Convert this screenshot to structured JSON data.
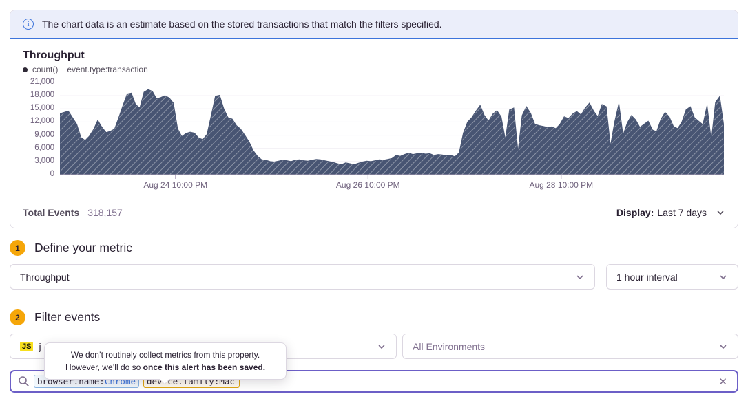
{
  "banner": {
    "text": "The chart data is an estimate based on the stored transactions that match the filters specified."
  },
  "chart_panel": {
    "title": "Throughput",
    "legend": {
      "series_label": "count()",
      "query_label": "event.type:transaction"
    },
    "footer": {
      "total_label": "Total Events",
      "total_value": "318,157",
      "display_label": "Display:",
      "display_value": "Last 7 days"
    }
  },
  "chart_data": {
    "type": "area",
    "title": "Throughput",
    "ylabel": "",
    "xlabel": "",
    "ylim": [
      0,
      21000
    ],
    "ytick_step": 3000,
    "ytick_labels": [
      "0",
      "3,000",
      "6,000",
      "9,000",
      "12,000",
      "15,000",
      "18,000",
      "21,000"
    ],
    "xticks": [
      {
        "label": "Aug 24 10:00 PM",
        "pos": 0.174
      },
      {
        "label": "Aug 26 10:00 PM",
        "pos": 0.464
      },
      {
        "label": "Aug 28 10:00 PM",
        "pos": 0.755
      }
    ],
    "grid": true,
    "legend_position": "top-left",
    "fill_color": "#485573",
    "hatch_color": "rgba(255,255,255,0.38)",
    "axis_line_color": "#a79cb5",
    "series": [
      {
        "name": "count() event.type:transaction",
        "values": [
          13900,
          14200,
          14500,
          13000,
          11500,
          8500,
          7800,
          8800,
          10300,
          12400,
          10800,
          9600,
          9900,
          10400,
          13000,
          15800,
          18400,
          18600,
          16000,
          15200,
          18800,
          19400,
          19000,
          17300,
          17600,
          18000,
          17500,
          16300,
          10500,
          8700,
          9400,
          9700,
          9500,
          8400,
          8000,
          9200,
          13500,
          17900,
          18100,
          15000,
          13000,
          12700,
          11200,
          10400,
          9000,
          7500,
          5500,
          4200,
          3400,
          3300,
          3000,
          2900,
          3100,
          3300,
          3200,
          3000,
          3300,
          3400,
          3200,
          3100,
          3300,
          3500,
          3400,
          3200,
          3000,
          2800,
          2500,
          2300,
          2700,
          2500,
          2300,
          2600,
          2900,
          3100,
          3000,
          3200,
          3400,
          3300,
          3500,
          3700,
          4400,
          4200,
          4600,
          4900,
          4600,
          4800,
          4900,
          4700,
          4800,
          4400,
          4600,
          4500,
          4300,
          4400,
          4100,
          5000,
          9500,
          12000,
          13000,
          14500,
          15800,
          13500,
          12200,
          13800,
          14600,
          13200,
          8000,
          14800,
          15200,
          5200,
          13500,
          15500,
          14000,
          11500,
          11200,
          11000,
          10800,
          10900,
          10500,
          11500,
          13200,
          12800,
          13800,
          14400,
          13600,
          15200,
          16300,
          14500,
          13200,
          16000,
          15500,
          6500,
          12000,
          16200,
          9000,
          11800,
          13500,
          12500,
          10800,
          11500,
          12200,
          10200,
          9800,
          12600,
          14200,
          13200,
          11000,
          10500,
          12000,
          14800,
          15500,
          13000,
          12200,
          11400,
          15800,
          7800,
          16500,
          17800,
          11000
        ]
      }
    ]
  },
  "sections": {
    "metric": {
      "step": "1",
      "title": "Define your metric",
      "metric_select_value": "Throughput",
      "interval_select_value": "1 hour interval"
    },
    "filter": {
      "step": "2",
      "title": "Filter events",
      "project_badge": "JS",
      "project_visible_label": "j",
      "environment_select_value": "All Environments"
    }
  },
  "tooltip": {
    "line1": "We don’t routinely collect metrics from this property.",
    "line2_prefix": "However, we’ll do so ",
    "line2_bold": "once this alert has been saved."
  },
  "search": {
    "tokens": [
      {
        "key": "browser.name:",
        "value": "Chrome",
        "style": "blue",
        "caret": false
      },
      {
        "key": "device.family:",
        "value": "Mac",
        "style": "amber",
        "caret": true
      }
    ],
    "clear_label": "✕"
  },
  "colors": {
    "accent_purple": "#6c5fc7",
    "banner_bg": "#ebeefa",
    "banner_border": "#3d74db",
    "step_badge": "#f5a609",
    "chart_fill": "#485573",
    "token_blue_border": "#89b4e2",
    "token_amber_border": "#dfa511",
    "js_badge_bg": "#f7df1e"
  }
}
